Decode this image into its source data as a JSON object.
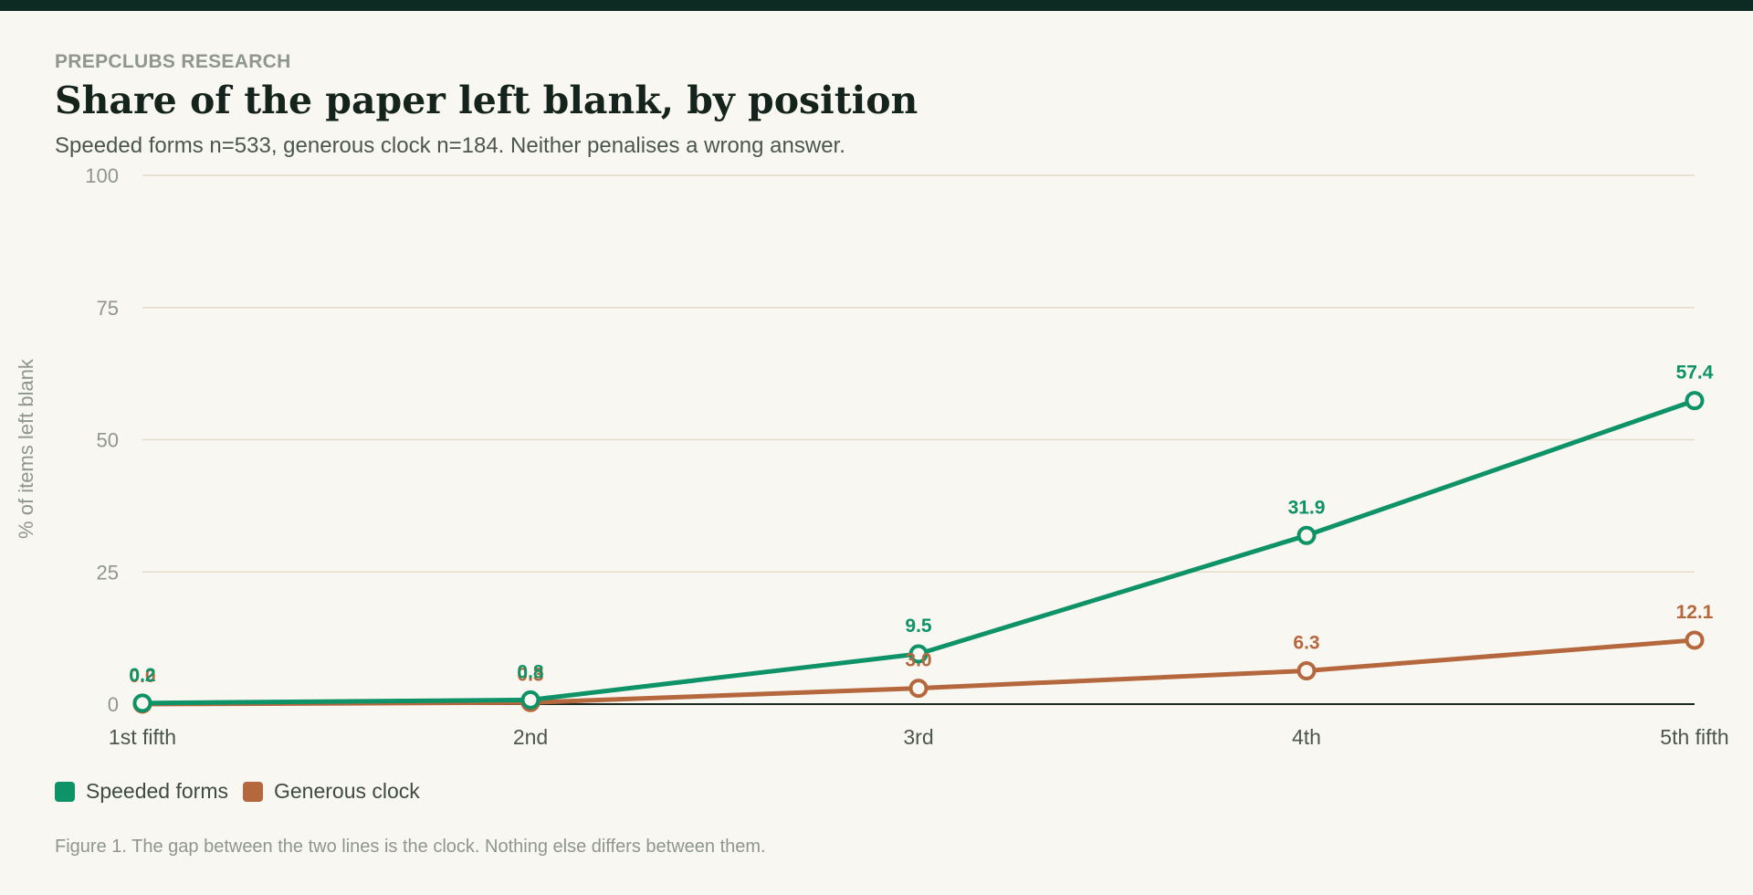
{
  "header": {
    "eyebrow": "PREPCLUBS RESEARCH",
    "title": "Share of the paper left blank, by position",
    "subtitle": "Speeded forms n=533, generous clock n=184. Neither penalises a wrong answer."
  },
  "caption": "Figure 1. The gap between the two lines is the clock. Nothing else differs between them.",
  "chart_data": {
    "type": "line",
    "title": "Share of the paper left blank, by position",
    "xlabel": "",
    "ylabel": "% of items left blank",
    "categories": [
      "1st fifth",
      "2nd",
      "3rd",
      "4th",
      "5th fifth"
    ],
    "ylim": [
      0,
      100
    ],
    "yticks": [
      0,
      25,
      50,
      75,
      100
    ],
    "grid": true,
    "legend": "bottom-left",
    "series": [
      {
        "name": "Speeded forms",
        "color": "#0e9267",
        "values": [
          0.2,
          0.8,
          9.5,
          31.9,
          57.4
        ],
        "labels": [
          "0.2",
          "0.8",
          "9.5",
          "31.9",
          "57.4"
        ]
      },
      {
        "name": "Generous clock",
        "color": "#b5683d",
        "values": [
          0.0,
          0.3,
          3.0,
          6.3,
          12.1
        ],
        "labels": [
          "0.0",
          "0.3",
          "3.0",
          "6.3",
          "12.1"
        ]
      }
    ]
  }
}
